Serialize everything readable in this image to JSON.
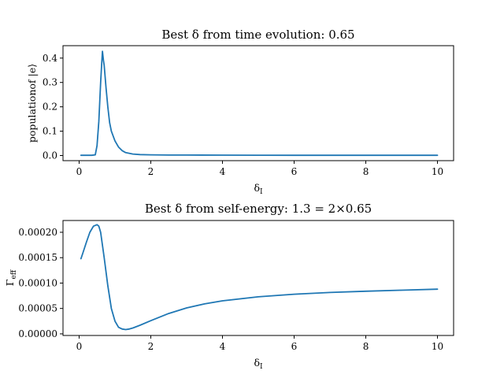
{
  "chart_data": [
    {
      "type": "line",
      "title": "Best δ from time evolution: 0.65",
      "xlabel": "δ_I",
      "ylabel": "population of |e⟩",
      "xlim": [
        -0.45,
        10.45
      ],
      "ylim": [
        -0.021,
        0.451
      ],
      "xticks": [
        0,
        2,
        4,
        6,
        8,
        10
      ],
      "xtick_labels": [
        "0",
        "2",
        "4",
        "6",
        "8",
        "10"
      ],
      "yticks": [
        0.0,
        0.1,
        0.2,
        0.3,
        0.4
      ],
      "ytick_labels": [
        "0.0",
        "0.1",
        "0.2",
        "0.3",
        "0.4"
      ],
      "grid": false,
      "series": [
        {
          "color": "#1f77b4",
          "x": [
            0.05,
            0.2,
            0.35,
            0.45,
            0.5,
            0.55,
            0.6,
            0.63,
            0.65,
            0.68,
            0.7,
            0.75,
            0.8,
            0.85,
            0.9,
            1.0,
            1.1,
            1.2,
            1.3,
            1.5,
            1.7,
            2.0,
            2.5,
            3.0,
            4.0,
            5.0,
            6.0,
            7.0,
            8.0,
            9.0,
            10.0
          ],
          "y": [
            0.001,
            0.001,
            0.001,
            0.003,
            0.04,
            0.14,
            0.3,
            0.375,
            0.428,
            0.39,
            0.37,
            0.28,
            0.2,
            0.135,
            0.1,
            0.06,
            0.035,
            0.02,
            0.012,
            0.006,
            0.004,
            0.003,
            0.002,
            0.002,
            0.0015,
            0.0012,
            0.001,
            0.001,
            0.001,
            0.001,
            0.001
          ]
        }
      ]
    },
    {
      "type": "line",
      "title": "Best δ from self-energy: 1.3 = 2×0.65",
      "xlabel": "δ_I",
      "ylabel": "Γ_eff",
      "xlim": [
        -0.45,
        10.45
      ],
      "ylim": [
        -3.2e-06,
        0.0002232
      ],
      "xticks": [
        0,
        2,
        4,
        6,
        8,
        10
      ],
      "xtick_labels": [
        "0",
        "2",
        "4",
        "6",
        "8",
        "10"
      ],
      "yticks": [
        0.0,
        5e-05,
        0.0001,
        0.00015,
        0.0002
      ],
      "ytick_labels": [
        "0.00000",
        "0.00005",
        "0.00010",
        "0.00015",
        "0.00020"
      ],
      "grid": false,
      "series": [
        {
          "color": "#1f77b4",
          "x": [
            0.05,
            0.1,
            0.2,
            0.3,
            0.4,
            0.5,
            0.55,
            0.6,
            0.7,
            0.8,
            0.9,
            1.0,
            1.1,
            1.2,
            1.3,
            1.4,
            1.5,
            1.7,
            2.0,
            2.5,
            3.0,
            3.5,
            4.0,
            5.0,
            6.0,
            7.0,
            8.0,
            9.0,
            10.0
          ],
          "y": [
            0.000148,
            0.000158,
            0.00018,
            0.0002,
            0.000212,
            0.000215,
            0.000212,
            0.0002,
            0.00015,
            9.5e-05,
            5e-05,
            2.5e-05,
            1.3e-05,
            9.5e-06,
            8.5e-06,
            9.5e-06,
            1.15e-05,
            1.7e-05,
            2.6e-05,
            4e-05,
            5.1e-05,
            5.9e-05,
            6.5e-05,
            7.3e-05,
            7.8e-05,
            8.15e-05,
            8.4e-05,
            8.6e-05,
            8.8e-05
          ]
        }
      ]
    }
  ]
}
